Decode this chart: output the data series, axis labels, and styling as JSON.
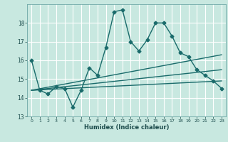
{
  "xlabel": "Humidex (Indice chaleur)",
  "ylabel": "",
  "xlim": [
    -0.5,
    23.5
  ],
  "ylim": [
    13,
    19
  ],
  "yticks": [
    13,
    14,
    15,
    16,
    17,
    18
  ],
  "xticks": [
    0,
    1,
    2,
    3,
    4,
    5,
    6,
    7,
    8,
    9,
    10,
    11,
    12,
    13,
    14,
    15,
    16,
    17,
    18,
    19,
    20,
    21,
    22,
    23
  ],
  "background_color": "#c8e8e0",
  "grid_color": "#ffffff",
  "line_color": "#1a6b6b",
  "lines": [
    {
      "x": [
        0,
        1,
        2,
        3,
        4,
        5,
        6,
        7,
        8,
        9,
        10,
        11,
        12,
        13,
        14,
        15,
        16,
        17,
        18,
        19,
        20,
        21,
        22,
        23
      ],
      "y": [
        16.0,
        14.4,
        14.2,
        14.6,
        14.5,
        13.5,
        14.4,
        15.6,
        15.2,
        16.7,
        18.6,
        18.7,
        17.0,
        16.5,
        17.1,
        18.0,
        18.0,
        17.3,
        16.4,
        16.2,
        15.5,
        15.2,
        14.9,
        14.5
      ],
      "marker": "D",
      "markersize": 2.5,
      "linewidth": 1.0
    },
    {
      "x": [
        0,
        23
      ],
      "y": [
        14.4,
        16.3
      ],
      "marker": null,
      "markersize": 0,
      "linewidth": 1.0
    },
    {
      "x": [
        0,
        23
      ],
      "y": [
        14.4,
        14.9
      ],
      "marker": null,
      "markersize": 0,
      "linewidth": 1.0
    },
    {
      "x": [
        0,
        23
      ],
      "y": [
        14.4,
        15.5
      ],
      "marker": null,
      "markersize": 0,
      "linewidth": 1.0
    }
  ]
}
